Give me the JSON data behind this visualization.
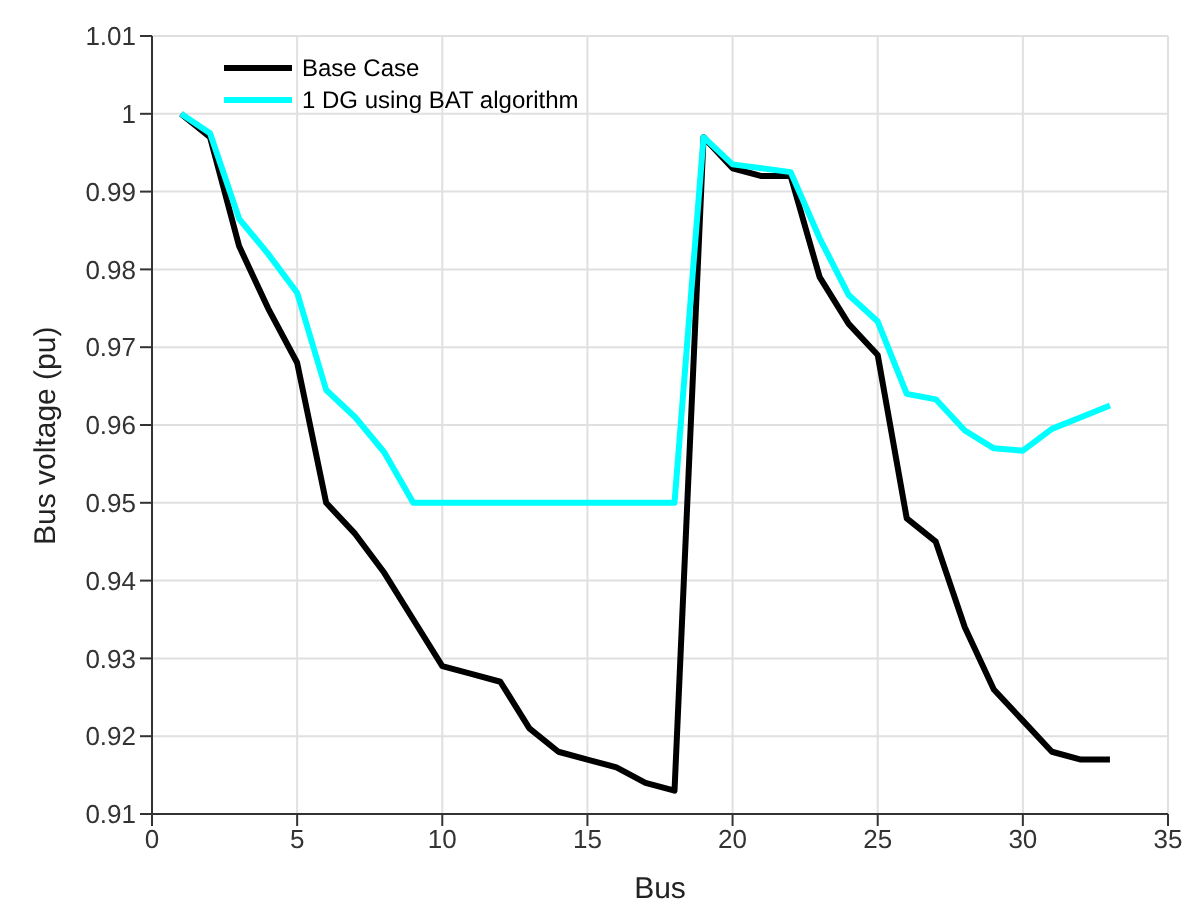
{
  "chart_data": {
    "type": "line",
    "xlabel": "Bus",
    "ylabel": "Bus voltage (pu)",
    "x": [
      1,
      2,
      3,
      4,
      5,
      6,
      7,
      8,
      9,
      10,
      11,
      12,
      13,
      14,
      15,
      16,
      17,
      18,
      19,
      20,
      21,
      22,
      23,
      24,
      25,
      26,
      27,
      28,
      29,
      30,
      31,
      32,
      33
    ],
    "series": [
      {
        "name": "Base Case",
        "color": "#000000",
        "values": [
          1,
          0.997,
          0.983,
          0.975,
          0.968,
          0.95,
          0.946,
          0.941,
          0.935,
          0.929,
          0.928,
          0.927,
          0.921,
          0.918,
          0.917,
          0.916,
          0.914,
          0.913,
          0.997,
          0.993,
          0.992,
          0.992,
          0.979,
          0.973,
          0.969,
          0.948,
          0.945,
          0.934,
          0.926,
          0.922,
          0.918,
          0.917,
          0.917
        ]
      },
      {
        "name": "1 DG using BAT algorithm",
        "color": "#00ffff",
        "values": [
          1,
          0.9975,
          0.9865,
          0.982,
          0.977,
          0.9645,
          0.961,
          0.9565,
          0.95,
          0.95,
          0.95,
          0.95,
          0.95,
          0.95,
          0.95,
          0.95,
          0.95,
          0.95,
          0.997,
          0.9935,
          0.993,
          0.9925,
          0.984,
          0.9767,
          0.9733,
          0.964,
          0.9633,
          0.9593,
          0.957,
          0.9567,
          0.9595,
          0.961,
          0.9625
        ]
      }
    ],
    "xlim": [
      0,
      35
    ],
    "xticks": [
      0,
      5,
      10,
      15,
      20,
      25,
      30,
      35
    ],
    "ylim": [
      0.91,
      1.01
    ],
    "yticks": [
      0.91,
      0.92,
      0.93,
      0.94,
      0.95,
      0.96,
      0.97,
      0.98,
      0.99,
      1,
      1.01
    ],
    "grid": true,
    "legend": "top left",
    "marker": "none",
    "line_style": "solid"
  }
}
